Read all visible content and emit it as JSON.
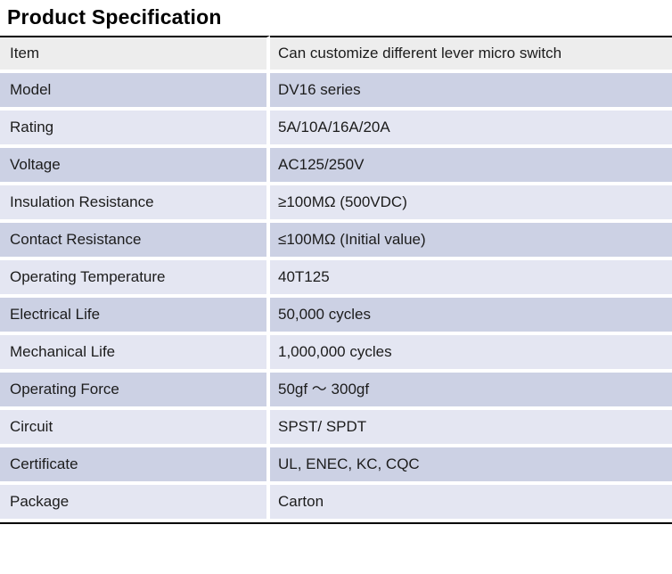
{
  "page": {
    "title": "Product Specification"
  },
  "table": {
    "colors": {
      "header_row_bg": "#ededed",
      "row_dark_bg": "#ccd1e4",
      "row_light_bg": "#e4e6f2",
      "divider": "#ffffff",
      "border": "#000000",
      "text": "#1c1c1c"
    },
    "rows": [
      {
        "label": "Item",
        "value": "Can customize different lever micro switch"
      },
      {
        "label": "Model",
        "value": "DV16 series"
      },
      {
        "label": "Rating",
        "value": "5A/10A/16A/20A"
      },
      {
        "label": "Voltage",
        "value": "AC125/250V"
      },
      {
        "label": "Insulation Resistance",
        "value": "≥100MΩ (500VDC)"
      },
      {
        "label": "Contact Resistance",
        "value": "≤100MΩ (Initial value)"
      },
      {
        "label": "Operating Temperature",
        "value": "40T125"
      },
      {
        "label": "Electrical Life",
        "value": "50,000 cycles"
      },
      {
        "label": "Mechanical Life",
        "value": "1,000,000 cycles"
      },
      {
        "label": "Operating Force",
        "value": "50gf ～ 300gf"
      },
      {
        "label": "Circuit",
        "value": "SPST/ SPDT"
      },
      {
        "label": "Certificate",
        "value": "UL, ENEC, KC, CQC"
      },
      {
        "label": "Package",
        "value": "Carton"
      }
    ]
  }
}
